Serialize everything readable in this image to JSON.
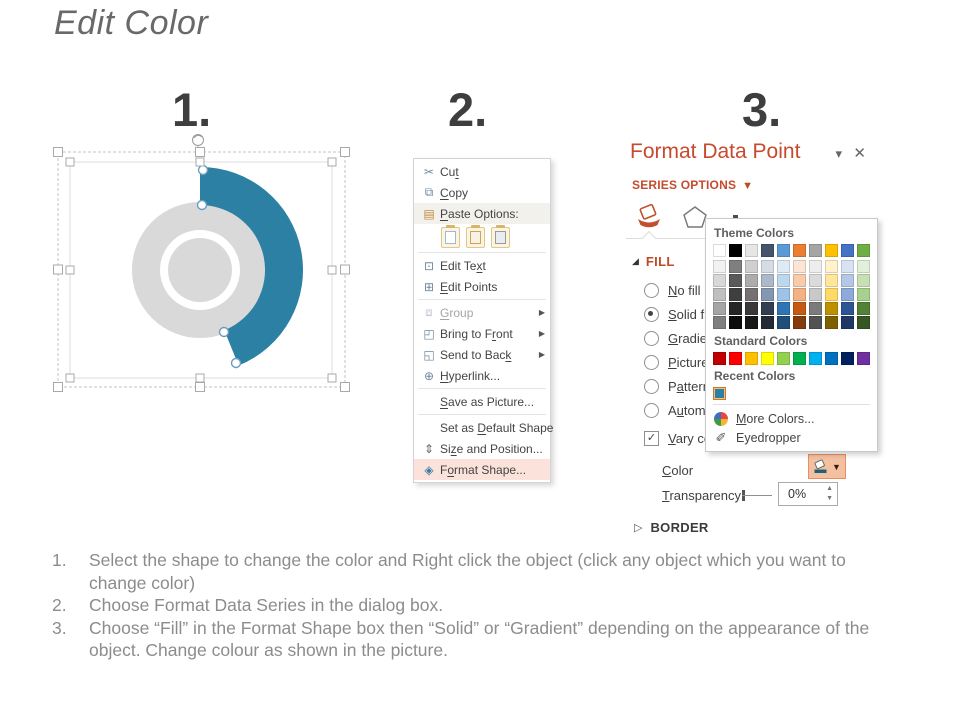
{
  "title": "Edit Color",
  "step_numbers": [
    "1.",
    "2.",
    "3."
  ],
  "colors": {
    "arc_teal": "#2C80A4",
    "donut_gray": "#D9D9D9",
    "accent_red": "#C64A2E",
    "menu_highlight": "#FBE2DA",
    "color_button_bg": "#F3C1A0",
    "color_button_border": "#E78E66"
  },
  "context_menu": {
    "items": [
      {
        "label": "Cut",
        "u": 2,
        "icon": "cut"
      },
      {
        "label": "Copy",
        "u": 0,
        "icon": "copy"
      },
      {
        "label": "Paste Options:",
        "u": 0,
        "icon": "paste",
        "shaded": true
      },
      {
        "type": "paste-icons",
        "icons": [
          "keep-source",
          "merge",
          "picture"
        ],
        "sep_after": true
      },
      {
        "label": "Edit Text",
        "u": 7,
        "icon": "edit-text"
      },
      {
        "label": "Edit Points",
        "u": 0,
        "icon": "edit-points",
        "sep_after": true
      },
      {
        "label": "Group",
        "u": 0,
        "icon": "group",
        "disabled": true,
        "arrow": true
      },
      {
        "label": "Bring to Front",
        "u": 10,
        "icon": "bring-front",
        "arrow": true
      },
      {
        "label": "Send to Back",
        "u": 11,
        "icon": "send-back",
        "arrow": true
      },
      {
        "label": "Hyperlink...",
        "u": 0,
        "icon": "hyperlink",
        "sep_after": true
      },
      {
        "label": "Save as Picture...",
        "u": 0,
        "sep_after": true
      },
      {
        "label": "Set as Default Shape",
        "u": 7
      },
      {
        "label": "Size and Position...",
        "u": 2,
        "icon": "size-position"
      },
      {
        "label": "Format Shape...",
        "u": 1,
        "icon": "format-shape",
        "highlighted": true
      }
    ]
  },
  "panel": {
    "title": "Format Data Point",
    "series_options": "SERIES OPTIONS",
    "fill_section": "FILL",
    "border_section": "BORDER",
    "fill_options": [
      {
        "label": "No fill",
        "u": 0,
        "kind": "radio"
      },
      {
        "label": "Solid fill",
        "u": 0,
        "kind": "radio",
        "selected": true
      },
      {
        "label": "Gradient fill",
        "u": 0,
        "kind": "radio"
      },
      {
        "label": "Picture or texture fill",
        "u": 0,
        "kind": "radio"
      },
      {
        "label": "Pattern fill",
        "u": 1,
        "kind": "radio"
      },
      {
        "label": "Automatic",
        "u": 1,
        "kind": "radio"
      },
      {
        "label": "Vary colors by point",
        "u": 0,
        "kind": "checkbox",
        "checked": true
      }
    ],
    "color_row": {
      "label": "Color",
      "u": 0
    },
    "transparency_row": {
      "label": "Transparency",
      "u": 0,
      "value": "0%"
    }
  },
  "color_popup": {
    "theme_header": "Theme Colors",
    "standard_header": "Standard Colors",
    "recent_header": "Recent Colors",
    "more_colors": {
      "label": "More Colors...",
      "u": 0
    },
    "eyedropper_label": "Eyedropper",
    "theme_main": [
      "#FFFFFF",
      "#000000",
      "#E7E6E6",
      "#44546A",
      "#5B9BD5",
      "#ED7D31",
      "#A5A5A5",
      "#FFC000",
      "#4472C4",
      "#70AD47"
    ],
    "theme_variant_rows": [
      [
        "#F2F2F2",
        "#7F7F7F",
        "#D0CECE",
        "#D6DCE5",
        "#DEEBF7",
        "#FBE5D6",
        "#EDEDED",
        "#FFF2CC",
        "#D9E2F3",
        "#E2EFDA"
      ],
      [
        "#D8D8D8",
        "#595959",
        "#AEABAB",
        "#ACB9CA",
        "#BDD7EE",
        "#F8CBAD",
        "#DBDBDB",
        "#FFE699",
        "#B4C7E7",
        "#C6E0B4"
      ],
      [
        "#BFBFBF",
        "#3F3F3F",
        "#767171",
        "#8497B0",
        "#9DC3E6",
        "#F4B183",
        "#C9C9C9",
        "#FFD966",
        "#8EAADB",
        "#A9D18E"
      ],
      [
        "#A5A5A5",
        "#262626",
        "#3B3838",
        "#333F50",
        "#2E75B6",
        "#C55A11",
        "#7B7B7B",
        "#BF9000",
        "#2F5496",
        "#538135"
      ],
      [
        "#7F7F7F",
        "#0C0C0C",
        "#181717",
        "#222A35",
        "#1F4E79",
        "#843C0C",
        "#525252",
        "#7F6000",
        "#1F3864",
        "#375623"
      ]
    ],
    "standard": [
      "#C00000",
      "#FF0000",
      "#FFC000",
      "#FFFF00",
      "#92D050",
      "#00B050",
      "#00B0F0",
      "#0070C0",
      "#002060",
      "#7030A0"
    ],
    "recent": [
      "#2C80A4"
    ]
  },
  "instructions": [
    {
      "n": "1.",
      "text": "Select the shape to change the color and Right click the object (click any object which you want to change color)"
    },
    {
      "n": "2.",
      "text": "Choose Format Data Series in the dialog box."
    },
    {
      "n": "3.",
      "text": "Choose “Fill” in the Format Shape box then “Solid” or “Gradient” depending on the appearance of the object. Change colour as shown in the picture."
    }
  ]
}
